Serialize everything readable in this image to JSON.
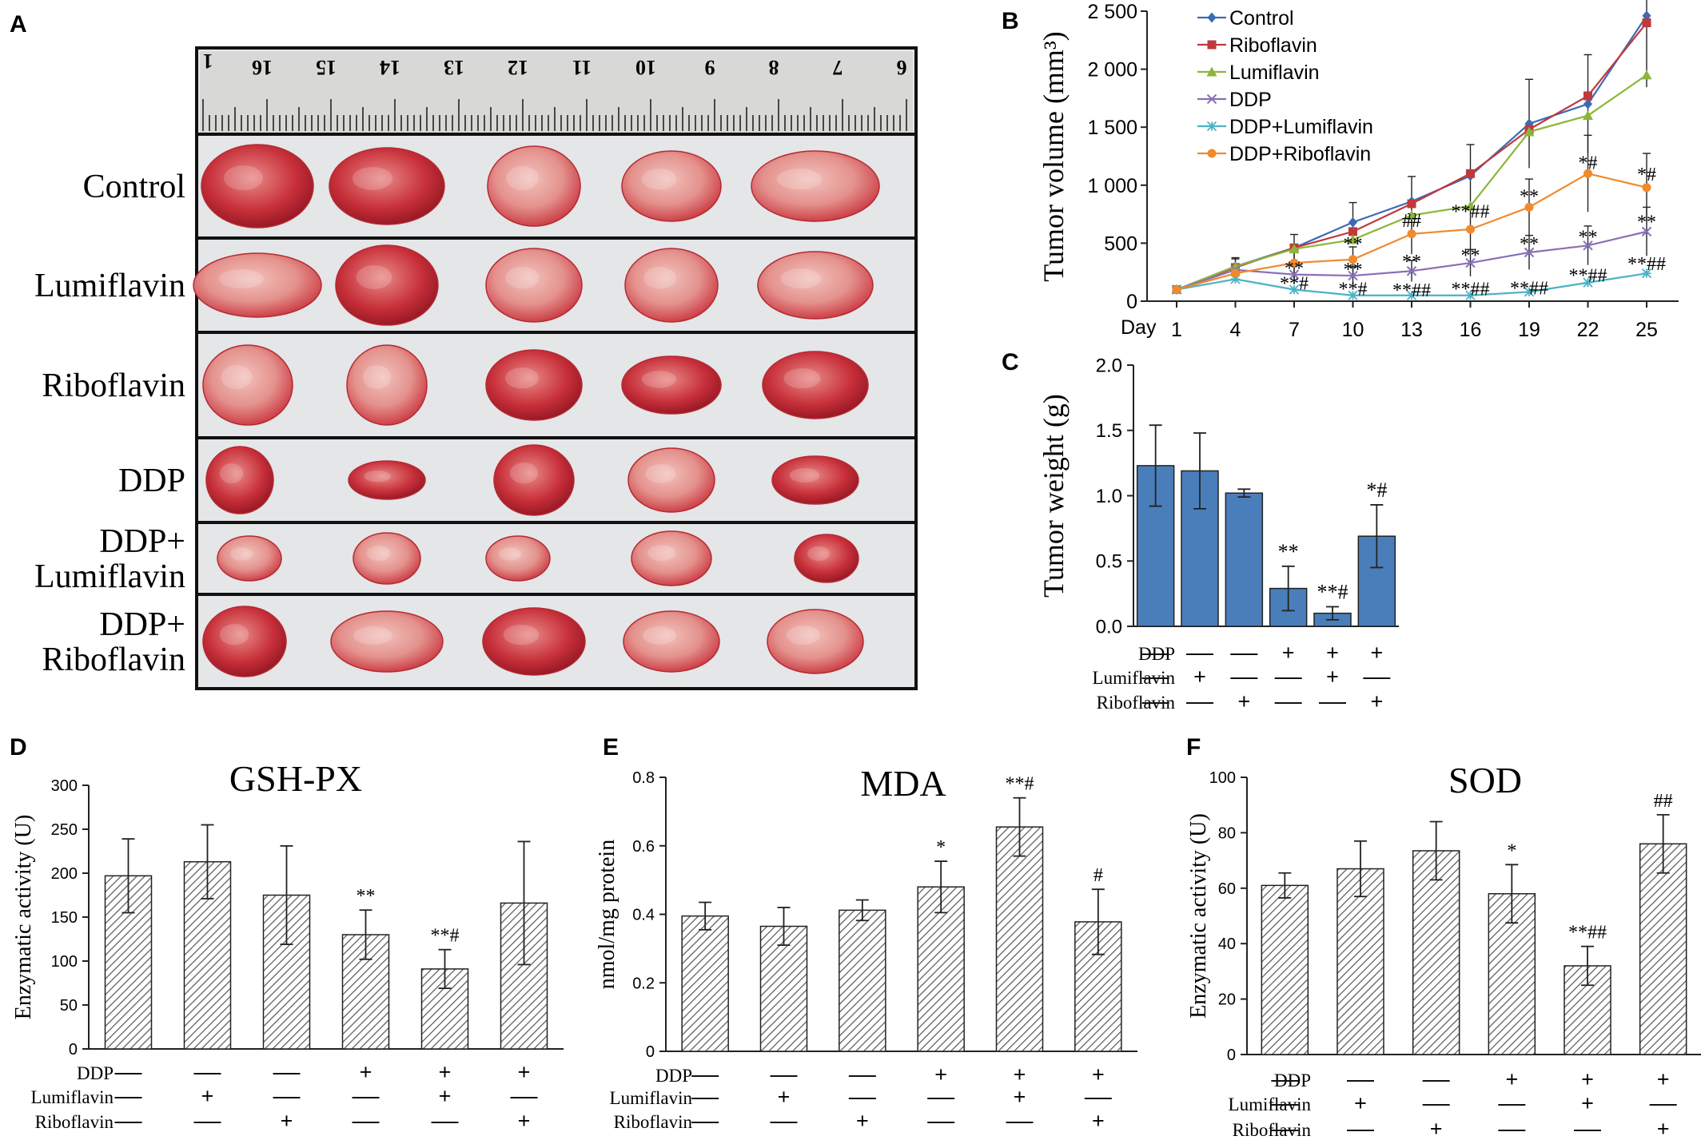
{
  "colors": {
    "bar_blue": "#4a7ebb",
    "tumor_red": "#c8303a",
    "tumor_pink": "#e9a9a4",
    "background_photo": "#e4e6e8",
    "control": "#3c6ab5",
    "riboflavin": "#c0393b",
    "lumiflavin": "#8db53a",
    "ddp": "#8a6fb7",
    "ddp_lumiflavin": "#4bb2c5",
    "ddp_riboflavin": "#f08a2c"
  },
  "panel_a": {
    "letter": "A",
    "ruler_numbers": [
      "16",
      "15",
      "14",
      "13",
      "12",
      "11",
      "10",
      "9",
      "8",
      "7",
      "6"
    ],
    "ruler_first": "1",
    "rows": [
      "Control",
      "Lumiflavin",
      "Riboflavin",
      "DDP",
      "DDP+\nLumiflavin",
      "DDP+\nRiboflavin"
    ]
  },
  "chart_data": [
    {
      "id": "B",
      "type": "line",
      "letter": "B",
      "ylabel": "Tumor volume (mm³)",
      "xlabel_prefix": "Day",
      "x": [
        1,
        4,
        7,
        10,
        13,
        16,
        19,
        22,
        25
      ],
      "ylim": [
        0,
        2500
      ],
      "yticks": [
        "0",
        "500",
        "1 000",
        "1 500",
        "2 000",
        "2 500"
      ],
      "legend_position": "top-left",
      "series": [
        {
          "name": "Control",
          "color": "#3c6ab5",
          "marker": "diamond",
          "values": [
            100,
            300,
            460,
            680,
            860,
            1080,
            1530,
            1700,
            2460
          ]
        },
        {
          "name": "Riboflavin",
          "color": "#c0393b",
          "marker": "square",
          "values": [
            100,
            290,
            460,
            600,
            840,
            1100,
            1480,
            1770,
            2400
          ]
        },
        {
          "name": "Lumiflavin",
          "color": "#8db53a",
          "marker": "triangle",
          "values": [
            100,
            300,
            450,
            530,
            740,
            820,
            1460,
            1600,
            1950
          ]
        },
        {
          "name": "DDP",
          "color": "#8a6fb7",
          "marker": "x",
          "values": [
            100,
            270,
            230,
            220,
            260,
            330,
            420,
            480,
            600
          ]
        },
        {
          "name": "DDP+Lumiflavin",
          "color": "#4bb2c5",
          "marker": "star",
          "values": [
            100,
            190,
            100,
            50,
            50,
            50,
            80,
            160,
            240
          ]
        },
        {
          "name": "DDP+Riboflavin",
          "color": "#f08a2c",
          "marker": "circle",
          "values": [
            100,
            240,
            330,
            360,
            580,
            620,
            810,
            1100,
            980
          ]
        }
      ],
      "annotations": [
        {
          "x": 7,
          "y": 230,
          "text": "**"
        },
        {
          "x": 7,
          "y": 100,
          "text": "**#"
        },
        {
          "x": 10,
          "y": 440,
          "text": "**"
        },
        {
          "x": 10,
          "y": 220,
          "text": "**"
        },
        {
          "x": 10,
          "y": 50,
          "text": "**#"
        },
        {
          "x": 13,
          "y": 640,
          "text": "##"
        },
        {
          "x": 13,
          "y": 290,
          "text": "**"
        },
        {
          "x": 13,
          "y": 40,
          "text": "**##"
        },
        {
          "x": 16,
          "y": 720,
          "text": "**##"
        },
        {
          "x": 16,
          "y": 340,
          "text": "**"
        },
        {
          "x": 16,
          "y": 50,
          "text": "**##"
        },
        {
          "x": 19,
          "y": 850,
          "text": "**"
        },
        {
          "x": 19,
          "y": 440,
          "text": "**"
        },
        {
          "x": 19,
          "y": 60,
          "text": "**##"
        },
        {
          "x": 22,
          "y": 1140,
          "text": "*#"
        },
        {
          "x": 22,
          "y": 500,
          "text": "**"
        },
        {
          "x": 22,
          "y": 170,
          "text": "**##"
        },
        {
          "x": 25,
          "y": 1040,
          "text": "*#"
        },
        {
          "x": 25,
          "y": 630,
          "text": "**"
        },
        {
          "x": 25,
          "y": 270,
          "text": "**##"
        }
      ]
    },
    {
      "id": "C",
      "type": "bar",
      "letter": "C",
      "ylabel": "Tumor weight (g)",
      "ylim": [
        0,
        2.0
      ],
      "yticks": [
        "0.0",
        "0.5",
        "1.0",
        "1.5",
        "2.0"
      ],
      "values": [
        1.23,
        1.19,
        1.02,
        0.29,
        0.1,
        0.69
      ],
      "errors": [
        0.31,
        0.29,
        0.03,
        0.17,
        0.05,
        0.24
      ],
      "sig": [
        "",
        "",
        "",
        "**",
        "**#",
        "*#"
      ],
      "rows": [
        {
          "label": "DDP",
          "marks": [
            "—",
            "—",
            "—",
            "+",
            "+",
            "+"
          ]
        },
        {
          "label": "Lumiflavin",
          "marks": [
            "—",
            "+",
            "—",
            "—",
            "+",
            "—"
          ]
        },
        {
          "label": "Riboflavin",
          "marks": [
            "—",
            "—",
            "+",
            "—",
            "—",
            "+"
          ]
        }
      ]
    },
    {
      "id": "D",
      "type": "bar",
      "letter": "D",
      "title": "GSH-PX",
      "ylabel": "Enzymatic activity (U)",
      "ylim": [
        0,
        300
      ],
      "yticks": [
        "0",
        "50",
        "100",
        "150",
        "200",
        "250",
        "300"
      ],
      "values": [
        197,
        213,
        175,
        130,
        91,
        166
      ],
      "errors": [
        42,
        42,
        56,
        28,
        22,
        70
      ],
      "sig": [
        "",
        "",
        "",
        "**",
        "**#",
        ""
      ],
      "rows": [
        {
          "label": "DDP",
          "marks": [
            "—",
            "—",
            "—",
            "+",
            "+",
            "+"
          ]
        },
        {
          "label": "Lumiflavin",
          "marks": [
            "—",
            "+",
            "—",
            "—",
            "+",
            "—"
          ]
        },
        {
          "label": "Riboflavin",
          "marks": [
            "—",
            "—",
            "+",
            "—",
            "—",
            "+"
          ]
        }
      ]
    },
    {
      "id": "E",
      "type": "bar",
      "letter": "E",
      "title": "MDA",
      "ylabel": "nmol/mg protein",
      "ylim": [
        0,
        0.8
      ],
      "yticks": [
        "0",
        "0.2",
        "0.4",
        "0.6",
        "0.8"
      ],
      "values": [
        0.395,
        0.365,
        0.412,
        0.48,
        0.655,
        0.378
      ],
      "errors": [
        0.04,
        0.055,
        0.03,
        0.075,
        0.085,
        0.095
      ],
      "sig": [
        "",
        "",
        "",
        "*",
        "**#",
        "#"
      ],
      "rows": [
        {
          "label": "DDP",
          "marks": [
            "—",
            "—",
            "—",
            "+",
            "+",
            "+"
          ]
        },
        {
          "label": "Lumiflavin",
          "marks": [
            "—",
            "+",
            "—",
            "—",
            "+",
            "—"
          ]
        },
        {
          "label": "Riboflavin",
          "marks": [
            "—",
            "—",
            "+",
            "—",
            "—",
            "+"
          ]
        }
      ]
    },
    {
      "id": "F",
      "type": "bar",
      "letter": "F",
      "title": "SOD",
      "ylabel": "Enzymatic activity (U)",
      "ylim": [
        0,
        100
      ],
      "yticks": [
        "0",
        "20",
        "40",
        "60",
        "80",
        "100"
      ],
      "values": [
        61,
        67,
        73.5,
        58,
        32,
        76
      ],
      "errors": [
        4.5,
        10,
        10.5,
        10.5,
        7,
        10.5
      ],
      "sig": [
        "",
        "",
        "",
        "*",
        "**##",
        "##"
      ],
      "rows": [
        {
          "label": "DDP",
          "marks": [
            "—",
            "—",
            "—",
            "+",
            "+",
            "+"
          ]
        },
        {
          "label": "Lumiflavin",
          "marks": [
            "—",
            "+",
            "—",
            "—",
            "+",
            "—"
          ]
        },
        {
          "label": "Riboflavin",
          "marks": [
            "—",
            "—",
            "+",
            "—",
            "—",
            "+"
          ]
        }
      ]
    }
  ]
}
